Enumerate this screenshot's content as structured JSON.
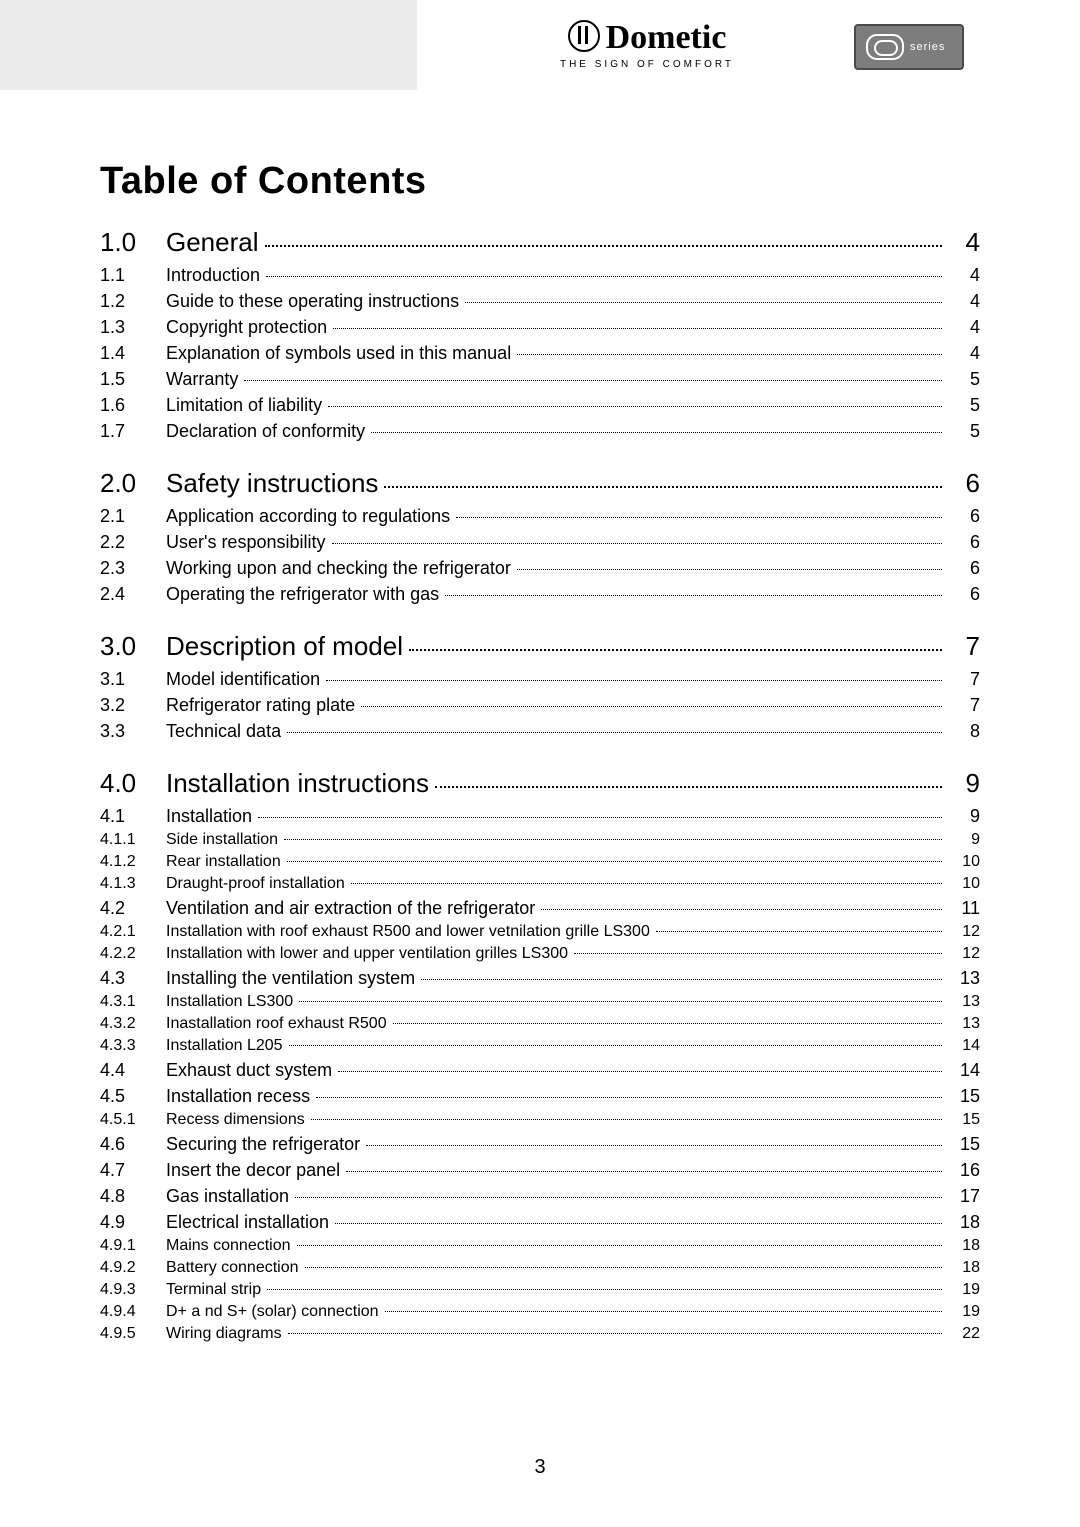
{
  "header": {
    "brand": "Dometic",
    "tagline": "THE SIGN OF COMFORT",
    "series_label": "series"
  },
  "title": "Table of Contents",
  "footer_page": "3",
  "sections": [
    {
      "num": "1.0",
      "title": "General",
      "page": "4",
      "items": [
        {
          "num": "1.1",
          "title": "Introduction",
          "page": "4",
          "lvl": 2
        },
        {
          "num": "1.2",
          "title": "Guide to these operating instructions",
          "page": "4",
          "lvl": 2
        },
        {
          "num": "1.3",
          "title": "Copyright protection",
          "page": "4",
          "lvl": 2
        },
        {
          "num": "1.4",
          "title": "Explanation of symbols used in this manual",
          "page": "4",
          "lvl": 2
        },
        {
          "num": "1.5",
          "title": "Warranty",
          "page": "5",
          "lvl": 2
        },
        {
          "num": "1.6",
          "title": "Limitation of liability",
          "page": "5",
          "lvl": 2
        },
        {
          "num": "1.7",
          "title": "Declaration of conformity",
          "page": "5",
          "lvl": 2
        }
      ]
    },
    {
      "num": "2.0",
      "title": "Safety instructions",
      "page": "6",
      "items": [
        {
          "num": "2.1",
          "title": "Application according to regulations",
          "page": "6",
          "lvl": 2
        },
        {
          "num": "2.2",
          "title": "User's responsibility",
          "page": "6",
          "lvl": 2
        },
        {
          "num": "2.3",
          "title": "Working upon and checking the refrigerator",
          "page": "6",
          "lvl": 2
        },
        {
          "num": "2.4",
          "title": "Operating the refrigerator with gas",
          "page": "6",
          "lvl": 2
        }
      ]
    },
    {
      "num": "3.0",
      "title": "Description of model",
      "page": "7",
      "items": [
        {
          "num": "3.1",
          "title": "Model identification",
          "page": "7",
          "lvl": 2
        },
        {
          "num": "3.2",
          "title": "Refrigerator rating plate",
          "page": "7",
          "lvl": 2
        },
        {
          "num": "3.3",
          "title": "Technical data",
          "page": "8",
          "lvl": 2
        }
      ]
    },
    {
      "num": "4.0",
      "title": "Installation instructions",
      "page": "9",
      "items": [
        {
          "num": "4.1",
          "title": "Installation",
          "page": "9",
          "lvl": 2
        },
        {
          "num": "4.1.1",
          "title": "Side installation",
          "page": "9",
          "lvl": 3
        },
        {
          "num": "4.1.2",
          "title": "Rear installation",
          "page": "10",
          "lvl": 3
        },
        {
          "num": "4.1.3",
          "title": "Draught-proof installation",
          "page": "10",
          "lvl": 3
        },
        {
          "num": "4.2",
          "title": "Ventilation and air extraction of the refrigerator",
          "page": "11",
          "lvl": 2
        },
        {
          "num": "4.2.1",
          "title": "Installation with roof exhaust R500 and lower vetnilation grille LS300",
          "page": "12",
          "lvl": 3
        },
        {
          "num": "4.2.2",
          "title": "Installation with lower and upper ventilation grilles LS300",
          "page": "12",
          "lvl": 3
        },
        {
          "num": "4.3",
          "title": "Installing the ventilation system",
          "page": "13",
          "lvl": 2
        },
        {
          "num": "4.3.1",
          "title": "Installation LS300",
          "page": "13",
          "lvl": 3
        },
        {
          "num": "4.3.2",
          "title": "Inastallation roof exhaust R500",
          "page": "13",
          "lvl": 3
        },
        {
          "num": "4.3.3",
          "title": "Installation L205",
          "page": "14",
          "lvl": 3
        },
        {
          "num": "4.4",
          "title": "Exhaust duct system",
          "page": "14",
          "lvl": 2
        },
        {
          "num": "4.5",
          "title": "Installation recess",
          "page": "15",
          "lvl": 2
        },
        {
          "num": "4.5.1",
          "title": "Recess dimensions",
          "page": "15",
          "lvl": 3
        },
        {
          "num": "4.6",
          "title": "Securing the refrigerator",
          "page": "15",
          "lvl": 2
        },
        {
          "num": "4.7",
          "title": "Insert the decor panel",
          "page": "16",
          "lvl": 2
        },
        {
          "num": "4.8",
          "title": "Gas installation",
          "page": "17",
          "lvl": 2
        },
        {
          "num": "4.9",
          "title": "Electrical installation",
          "page": "18",
          "lvl": 2
        },
        {
          "num": "4.9.1",
          "title": "Mains connection",
          "page": "18",
          "lvl": 3
        },
        {
          "num": "4.9.2",
          "title": "Battery connection",
          "page": "18",
          "lvl": 3
        },
        {
          "num": "4.9.3",
          "title": "Terminal strip",
          "page": "19",
          "lvl": 3
        },
        {
          "num": "4.9.4",
          "title": "D+ a nd S+ (solar) connection",
          "page": "19",
          "lvl": 3
        },
        {
          "num": "4.9.5",
          "title": "Wiring diagrams",
          "page": "22",
          "lvl": 3
        }
      ]
    }
  ]
}
